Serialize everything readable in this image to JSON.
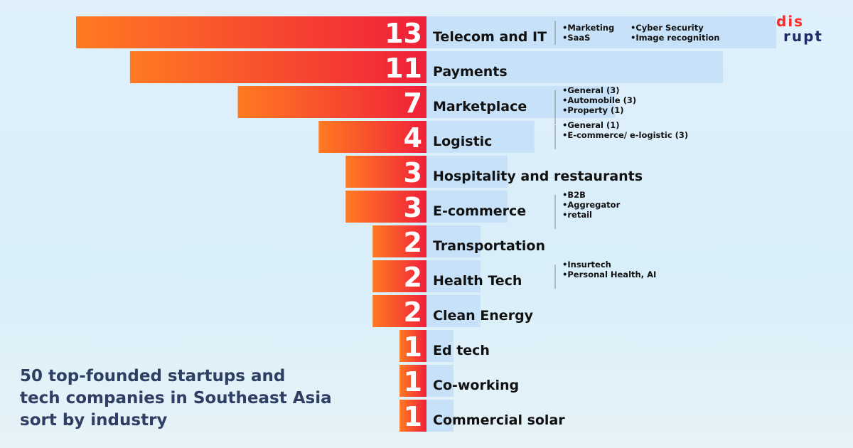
{
  "chart_data": {
    "type": "bar",
    "orientation": "horizontal",
    "title": "50 top-founded startups and tech companies in Southeast Asia sort by industry",
    "categories": [
      "Telecom and IT",
      "Payments",
      "Marketplace",
      "Logistic",
      "Hospitality and restaurants",
      "E-commerce",
      "Transportation",
      "Health Tech",
      "Clean Energy",
      "Ed tech",
      "Co-working",
      "Commercial solar"
    ],
    "values": [
      13,
      11,
      7,
      4,
      3,
      3,
      2,
      2,
      2,
      1,
      1,
      1
    ],
    "subcategories": [
      [
        "Marketing",
        "SaaS",
        "Cyber Security",
        "Image recognition"
      ],
      [],
      [
        "General (3)",
        "Automobile (3)",
        "Property (1)"
      ],
      [
        "General (1)",
        "E-commerce/ e-logistic (3)"
      ],
      [],
      [
        "B2B",
        "Aggregator",
        "retail"
      ],
      [],
      [
        "Insurtech",
        "Personal Health, AI"
      ],
      [],
      [],
      [],
      []
    ],
    "colors": {
      "gradient_start": "#ff7a22",
      "gradient_end": "#f0203a",
      "light_bar": "#c6e1f8",
      "divider": "#8a8a8a"
    }
  },
  "caption": {
    "line1": "50 top-founded startups and",
    "line2": "tech companies in Southeast Asia",
    "line3": "sort by industry"
  },
  "logo": {
    "top": "dis",
    "bottom": "rupt"
  }
}
